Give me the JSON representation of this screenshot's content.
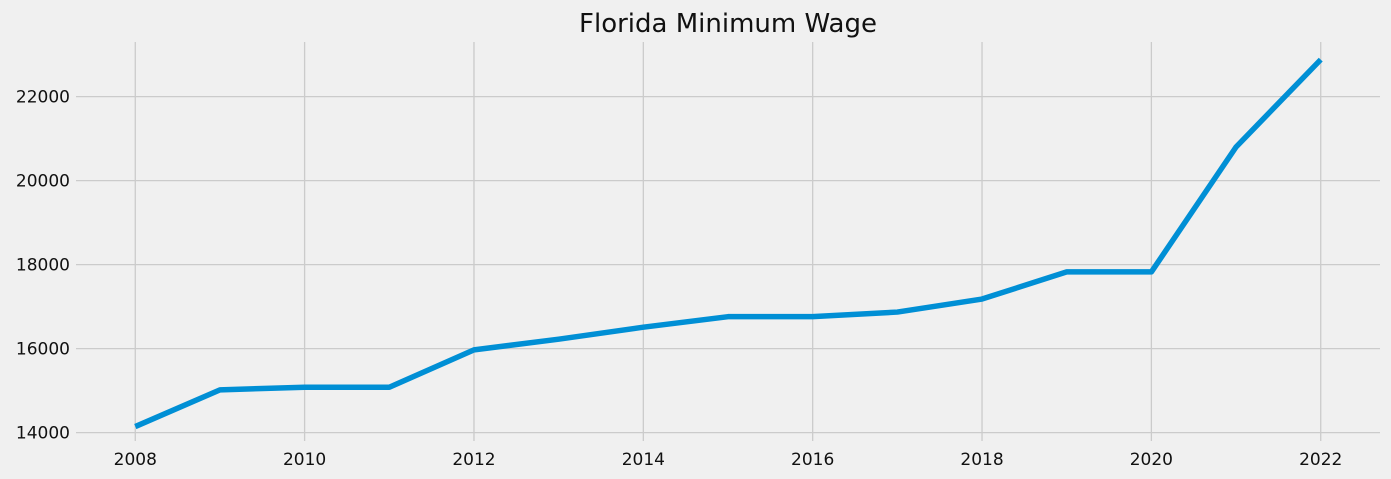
{
  "chart_data": {
    "type": "line",
    "title": "Florida Minimum Wage",
    "xlabel": "",
    "ylabel": "",
    "x": [
      2008,
      2009,
      2010,
      2011,
      2012,
      2013,
      2014,
      2015,
      2016,
      2017,
      2018,
      2019,
      2020,
      2021,
      2022
    ],
    "series": [
      {
        "values": [
          14144,
          15018,
          15080,
          15080,
          15970,
          16224,
          16510,
          16760,
          16760,
          16870,
          17180,
          17826,
          17826,
          20800,
          22880
        ],
        "color": "#008fd5"
      }
    ],
    "xlim": [
      2007.3,
      2022.7
    ],
    "ylim": [
      13800,
      23300
    ],
    "x_ticks": [
      2008,
      2010,
      2012,
      2014,
      2016,
      2018,
      2020,
      2022
    ],
    "y_ticks": [
      14000,
      16000,
      18000,
      20000,
      22000
    ],
    "grid": true,
    "background": "#f0f0f0",
    "grid_color": "#cbcbcb"
  }
}
